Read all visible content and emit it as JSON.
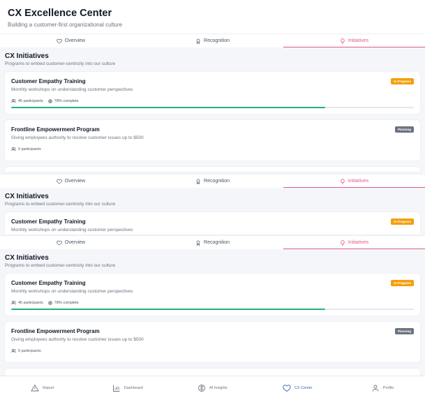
{
  "header": {
    "title": "CX Excellence Center",
    "subtitle": "Building a customer-first organizational culture"
  },
  "tabs": [
    {
      "label": "Overview",
      "icon": "heart-icon",
      "active": false
    },
    {
      "label": "Recognition",
      "icon": "award-icon",
      "active": false
    },
    {
      "label": "Initiatives",
      "icon": "lightbulb-icon",
      "active": true
    }
  ],
  "section": {
    "title": "CX Initiatives",
    "subtitle": "Programs to embed customer-centricity into our culture"
  },
  "initiatives": [
    {
      "title": "Customer Empathy Training",
      "description": "Monthly workshops on understanding customer perspectives",
      "status": "In Progress",
      "participants": "45 participants",
      "completion_text": "78% complete",
      "progress": 0.78
    },
    {
      "title": "Frontline Empowerment Program",
      "description": "Giving employees authority to resolve customer issues up to $500",
      "status": "Planning",
      "participants": "0 participants"
    }
  ],
  "bottom_nav": [
    {
      "label": "Report",
      "icon": "alert-triangle-icon",
      "active": false
    },
    {
      "label": "Dashboard",
      "icon": "bar-chart-icon",
      "active": false
    },
    {
      "label": "AI Insights",
      "icon": "brain-icon",
      "active": false
    },
    {
      "label": "CX Center",
      "icon": "heart-icon",
      "active": true
    },
    {
      "label": "Profile",
      "icon": "user-icon",
      "active": false
    }
  ],
  "colors": {
    "accent": "#e05a8c",
    "progress": "#22b07d",
    "in_progress_badge": "#f59e0b",
    "planning_badge": "#6b7280",
    "nav_active": "#3b5fc0"
  }
}
